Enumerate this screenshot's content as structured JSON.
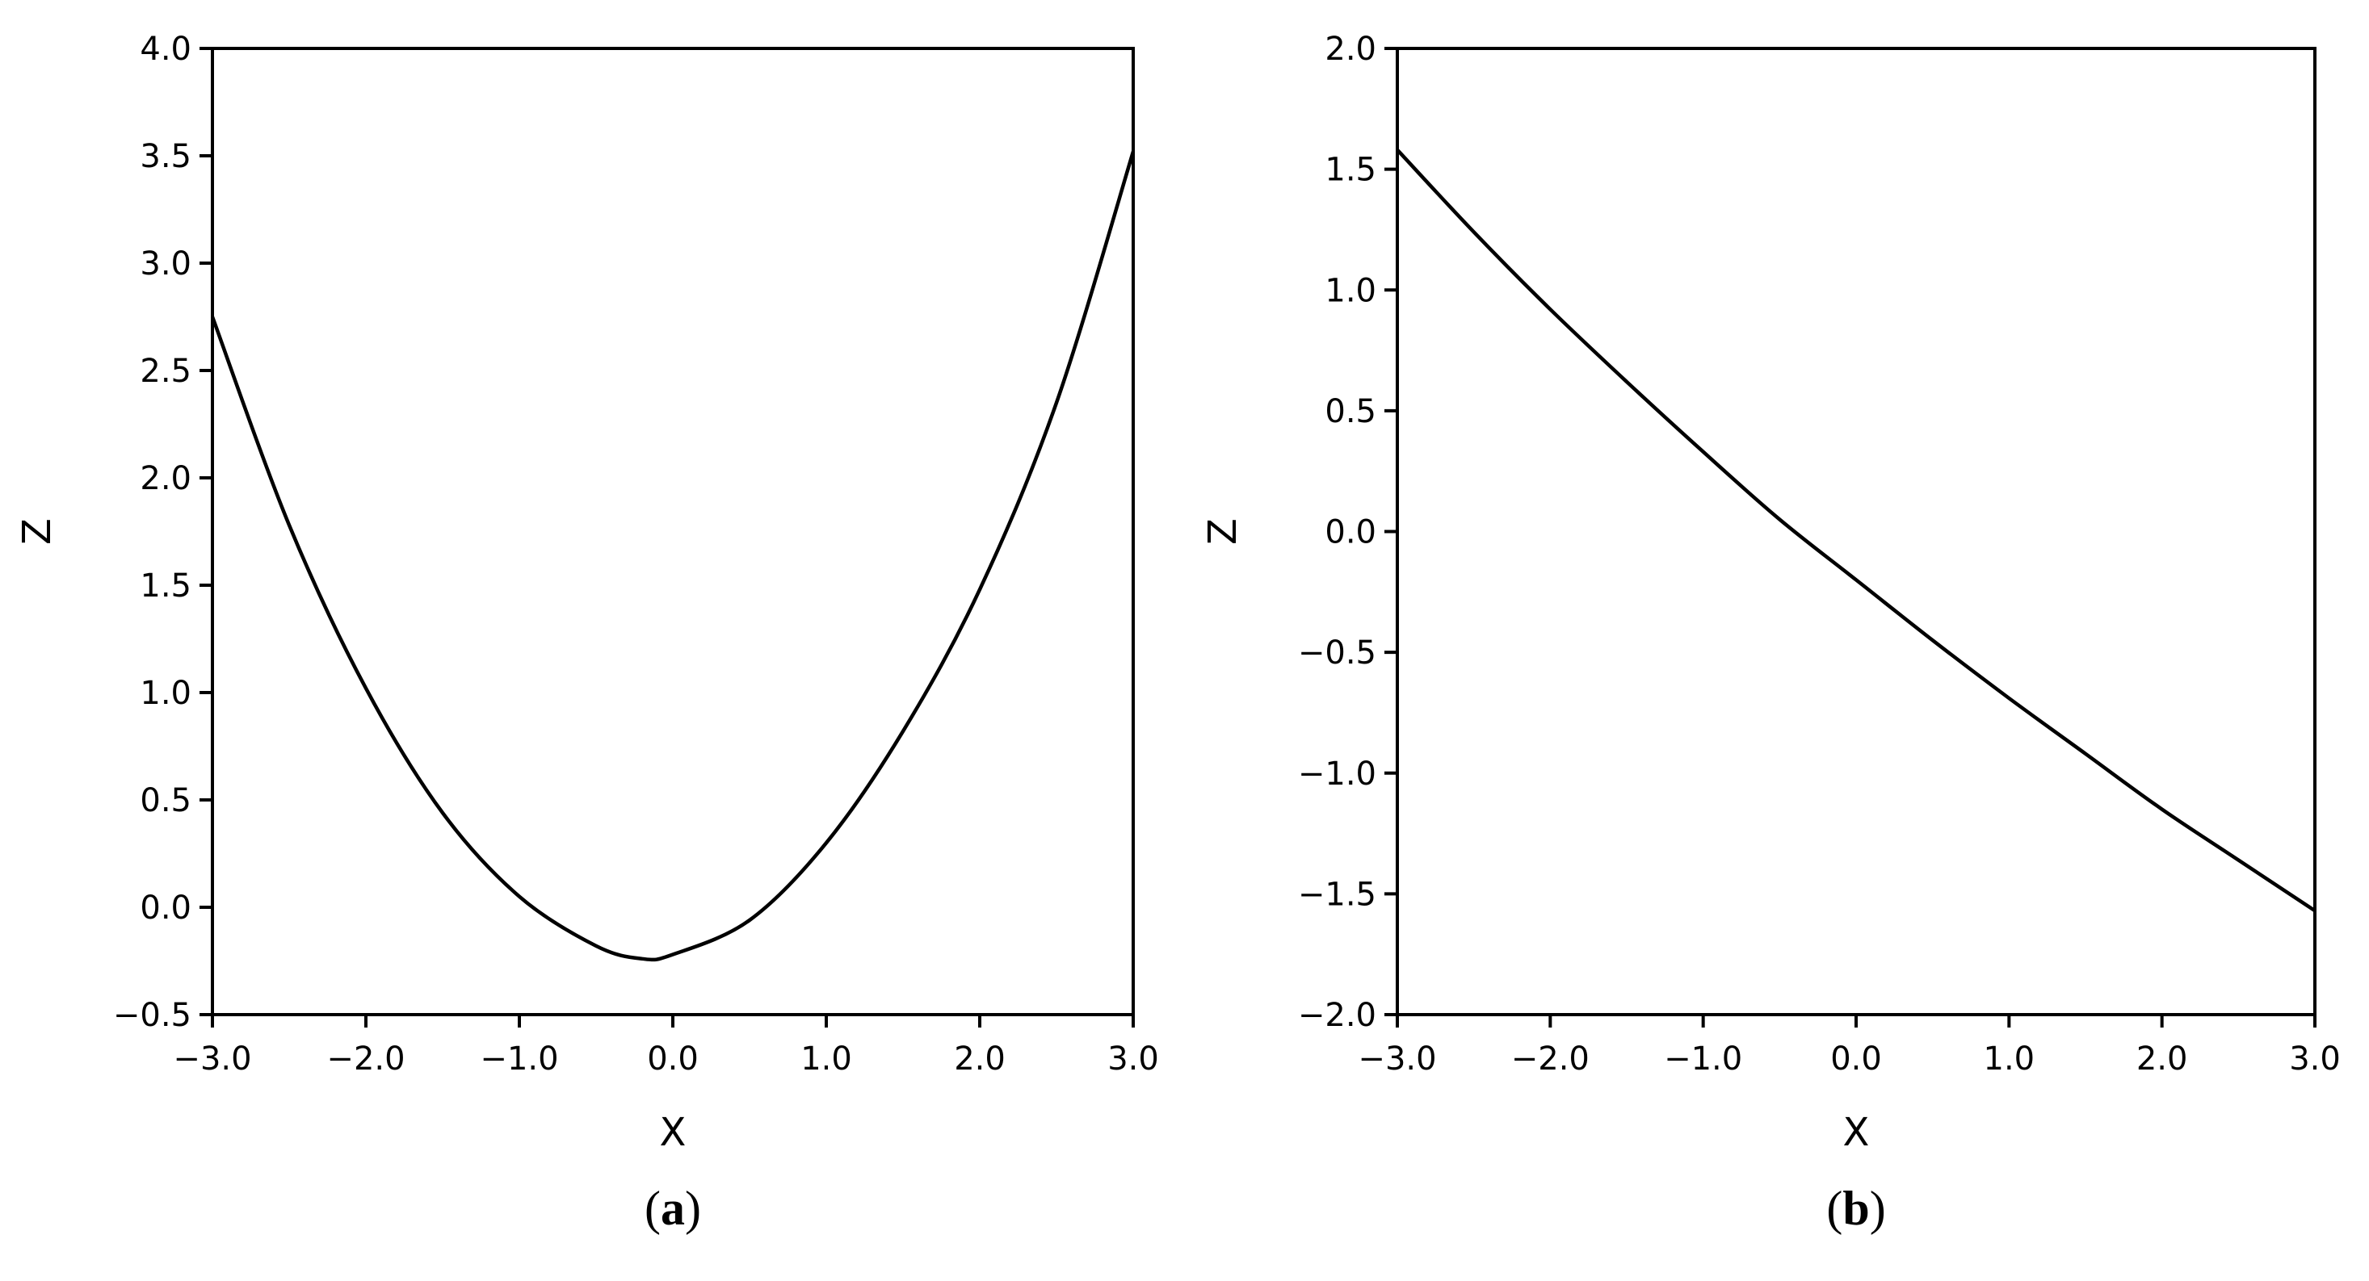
{
  "chart_data": [
    {
      "type": "line",
      "panel_label": "a",
      "xlabel": "X",
      "ylabel": "Z",
      "xlim": [
        -3.0,
        3.0
      ],
      "ylim": [
        -0.5,
        4.0
      ],
      "x_ticks": [
        "−3.0",
        "−2.0",
        "−1.0",
        "0.0",
        "1.0",
        "2.0",
        "3.0"
      ],
      "y_ticks": [
        "−0.5",
        "0.0",
        "0.5",
        "1.0",
        "1.5",
        "2.0",
        "2.5",
        "3.0",
        "3.5",
        "4.0"
      ],
      "grid": false,
      "series": [
        {
          "color": "#000000",
          "x": [
            -3.0,
            -2.5,
            -2.0,
            -1.5,
            -1.0,
            -0.5,
            -0.2,
            0.0,
            0.5,
            1.0,
            1.5,
            2.0,
            2.5,
            3.0
          ],
          "y": [
            2.75,
            1.78,
            1.02,
            0.44,
            0.05,
            -0.18,
            -0.24,
            -0.22,
            -0.06,
            0.3,
            0.82,
            1.48,
            2.35,
            3.52
          ]
        }
      ]
    },
    {
      "type": "line",
      "panel_label": "b",
      "xlabel": "X",
      "ylabel": "Z",
      "xlim": [
        -3.0,
        3.0
      ],
      "ylim": [
        -2.0,
        2.0
      ],
      "x_ticks": [
        "−3.0",
        "−2.0",
        "−1.0",
        "0.0",
        "1.0",
        "2.0",
        "3.0"
      ],
      "y_ticks": [
        "−2.0",
        "−1.5",
        "−1.0",
        "−0.5",
        "0.0",
        "0.5",
        "1.0",
        "1.5",
        "2.0"
      ],
      "grid": false,
      "series": [
        {
          "color": "#000000",
          "x": [
            -3.0,
            -2.5,
            -2.0,
            -1.5,
            -1.0,
            -0.5,
            0.0,
            0.5,
            1.0,
            1.5,
            2.0,
            2.5,
            3.0
          ],
          "y": [
            1.58,
            1.24,
            0.92,
            0.62,
            0.33,
            0.05,
            -0.2,
            -0.45,
            -0.69,
            -0.92,
            -1.15,
            -1.36,
            -1.57
          ]
        }
      ]
    }
  ]
}
